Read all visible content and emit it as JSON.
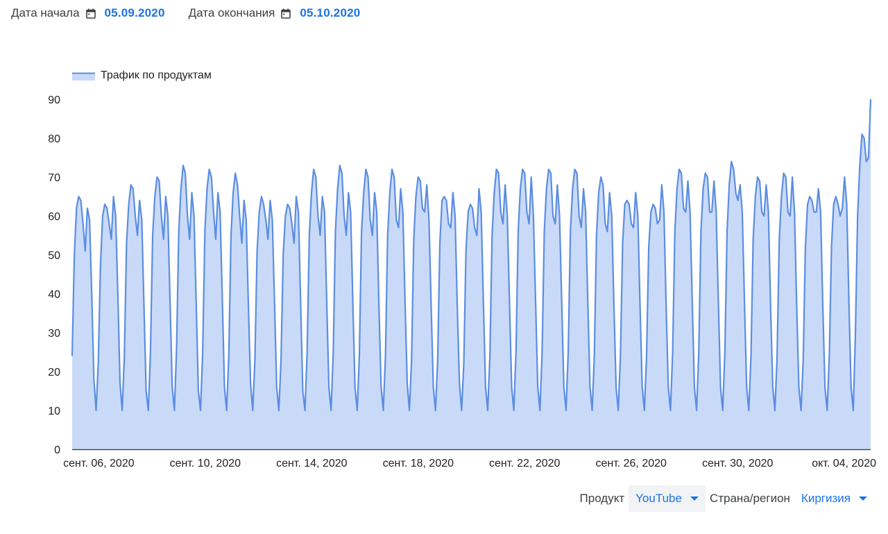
{
  "header": {
    "start_label": "Дата начала",
    "start_value": "05.09.2020",
    "end_label": "Дата окончания",
    "end_value": "05.10.2020"
  },
  "filters": {
    "product_label": "Продукт",
    "product_value": "YouTube",
    "region_label": "Страна/регион",
    "region_value": "Киргизия"
  },
  "colors": {
    "line": "#5b8de2",
    "area": "#c9daf8",
    "accent": "#1a73e8"
  },
  "chart_data": {
    "type": "area",
    "title": "",
    "xlabel": "",
    "ylabel": "",
    "ylim": [
      0,
      90
    ],
    "yticks": [
      0,
      10,
      20,
      30,
      40,
      50,
      60,
      70,
      80,
      90
    ],
    "grid": false,
    "legend_position": "top-left",
    "x_start": "2020-09-05",
    "x_end": "2020-10-05",
    "x_interval": "hourly",
    "x_tick_labels": [
      "сент. 06, 2020",
      "сент. 10, 2020",
      "сент. 14, 2020",
      "сент. 18, 2020",
      "сент. 22, 2020",
      "сент. 26, 2020",
      "сент. 30, 2020",
      "окт. 04, 2020"
    ],
    "series": [
      {
        "name": "Трафик по продуктам",
        "values": [
          24,
          50,
          62,
          65,
          64,
          58,
          51,
          62,
          59,
          40,
          18,
          10,
          22,
          47,
          60,
          63,
          62,
          58,
          54,
          65,
          60,
          40,
          17,
          10,
          24,
          53,
          63,
          68,
          67,
          60,
          55,
          64,
          59,
          37,
          15,
          10,
          25,
          55,
          65,
          70,
          69,
          60,
          54,
          65,
          60,
          38,
          16,
          10,
          26,
          56,
          67,
          73,
          71,
          60,
          54,
          66,
          60,
          38,
          15,
          10,
          25,
          56,
          67,
          72,
          70,
          61,
          54,
          66,
          61,
          39,
          16,
          10,
          24,
          55,
          66,
          71,
          68,
          60,
          53,
          64,
          59,
          37,
          17,
          10,
          23,
          51,
          61,
          65,
          63,
          59,
          54,
          64,
          59,
          38,
          16,
          10,
          23,
          50,
          60,
          63,
          62,
          58,
          53,
          65,
          61,
          38,
          15,
          10,
          25,
          55,
          66,
          72,
          70,
          60,
          55,
          65,
          61,
          38,
          16,
          10,
          25,
          56,
          67,
          73,
          71,
          60,
          55,
          66,
          61,
          38,
          16,
          10,
          24,
          56,
          66,
          72,
          70,
          59,
          55,
          66,
          61,
          37,
          16,
          10,
          24,
          55,
          66,
          72,
          70,
          59,
          57,
          67,
          61,
          38,
          17,
          10,
          23,
          54,
          65,
          70,
          69,
          62,
          61,
          68,
          59,
          37,
          16,
          10,
          23,
          53,
          64,
          65,
          64,
          58,
          57,
          66,
          60,
          37,
          17,
          10,
          22,
          51,
          61,
          63,
          62,
          57,
          55,
          67,
          61,
          38,
          16,
          10,
          24,
          55,
          66,
          72,
          71,
          61,
          58,
          68,
          60,
          38,
          16,
          10,
          25,
          56,
          67,
          72,
          71,
          61,
          58,
          70,
          60,
          38,
          16,
          10,
          25,
          56,
          67,
          72,
          71,
          60,
          58,
          68,
          60,
          38,
          16,
          10,
          25,
          56,
          67,
          72,
          71,
          60,
          57,
          67,
          61,
          38,
          16,
          10,
          24,
          55,
          66,
          70,
          68,
          58,
          56,
          66,
          60,
          37,
          16,
          10,
          24,
          53,
          63,
          64,
          63,
          58,
          57,
          66,
          60,
          37,
          16,
          10,
          24,
          52,
          61,
          63,
          62,
          58,
          59,
          68,
          61,
          37,
          16,
          10,
          25,
          56,
          67,
          72,
          71,
          62,
          61,
          69,
          61,
          38,
          16,
          10,
          25,
          56,
          67,
          71,
          70,
          61,
          61,
          69,
          61,
          38,
          16,
          10,
          25,
          56,
          68,
          74,
          72,
          66,
          64,
          68,
          61,
          38,
          16,
          10,
          24,
          54,
          65,
          70,
          69,
          61,
          60,
          68,
          61,
          37,
          16,
          10,
          24,
          54,
          65,
          71,
          70,
          61,
          60,
          70,
          61,
          37,
          16,
          10,
          23,
          52,
          63,
          65,
          64,
          61,
          61,
          67,
          61,
          37,
          16,
          10,
          24,
          52,
          63,
          65,
          63,
          60,
          62,
          70,
          63,
          38,
          16,
          10,
          30,
          60,
          73,
          81,
          80,
          74,
          75,
          90
        ]
      }
    ]
  }
}
